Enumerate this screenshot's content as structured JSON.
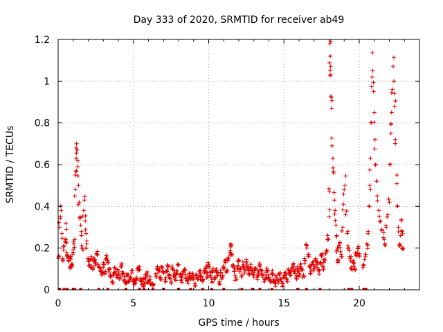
{
  "chart_data": {
    "type": "scatter",
    "title": "Day 333 of 2020, SRMTID for receiver ab49",
    "xlabel": "GPS time / hours",
    "ylabel": "SRMTID / TECUs",
    "xlim": [
      0,
      24
    ],
    "ylim": [
      0,
      1.2
    ],
    "xticks": [
      0,
      5,
      10,
      15,
      20
    ],
    "xtick_labels": [
      "0",
      "5",
      "10",
      "15",
      "20"
    ],
    "yticks": [
      0,
      0.2,
      0.4,
      0.6,
      0.8,
      1,
      1.2
    ],
    "ytick_labels": [
      "0",
      "0.2",
      "0.4",
      "0.6",
      "0.8",
      "1",
      "1.2"
    ],
    "grid": true,
    "marker": "plus",
    "color": "#e00000",
    "series": [
      {
        "name": "SRMTID",
        "points": [
          [
            0.05,
            0.16
          ],
          [
            0.1,
            0.3
          ],
          [
            0.15,
            0.35
          ],
          [
            0.2,
            0.38
          ],
          [
            0.25,
            0.27
          ],
          [
            0.3,
            0.15
          ],
          [
            0.4,
            0.21
          ],
          [
            0.5,
            0.24
          ],
          [
            0.55,
            0.29
          ],
          [
            0.6,
            0.17
          ],
          [
            0.7,
            0.14
          ],
          [
            0.8,
            0.11
          ],
          [
            0.85,
            0.16
          ],
          [
            0.9,
            0.12
          ],
          [
            1.0,
            0.18
          ],
          [
            1.05,
            0.22
          ],
          [
            1.1,
            0.45
          ],
          [
            1.15,
            0.55
          ],
          [
            1.2,
            0.63
          ],
          [
            1.22,
            0.7
          ],
          [
            1.25,
            0.67
          ],
          [
            1.3,
            0.59
          ],
          [
            1.35,
            0.5
          ],
          [
            1.4,
            0.42
          ],
          [
            1.45,
            0.35
          ],
          [
            1.5,
            0.31
          ],
          [
            1.55,
            0.26
          ],
          [
            1.6,
            0.2
          ],
          [
            1.7,
            0.38
          ],
          [
            1.75,
            0.43
          ],
          [
            1.8,
            0.33
          ],
          [
            1.85,
            0.27
          ],
          [
            1.9,
            0.22
          ],
          [
            2.0,
            0.15
          ],
          [
            2.1,
            0.12
          ],
          [
            2.2,
            0.16
          ],
          [
            2.3,
            0.1
          ],
          [
            2.4,
            0.14
          ],
          [
            2.5,
            0.13
          ],
          [
            2.6,
            0.17
          ],
          [
            2.7,
            0.11
          ],
          [
            2.8,
            0.09
          ],
          [
            2.9,
            0.07
          ],
          [
            3.0,
            0.12
          ],
          [
            3.1,
            0.08
          ],
          [
            3.2,
            0.15
          ],
          [
            3.3,
            0.14
          ],
          [
            3.4,
            0.1
          ],
          [
            3.5,
            0.06
          ],
          [
            3.6,
            0.04
          ],
          [
            3.7,
            0.08
          ],
          [
            3.8,
            0.1
          ],
          [
            3.9,
            0.07
          ],
          [
            4.0,
            0.09
          ],
          [
            4.1,
            0.06
          ],
          [
            4.2,
            0.11
          ],
          [
            4.3,
            0.08
          ],
          [
            4.4,
            0.05
          ],
          [
            4.5,
            0.03
          ],
          [
            4.6,
            0.07
          ],
          [
            4.7,
            0.04
          ],
          [
            4.8,
            0.06
          ],
          [
            4.9,
            0.08
          ],
          [
            5.0,
            0.05
          ],
          [
            5.1,
            0.03
          ],
          [
            5.2,
            0.06
          ],
          [
            5.3,
            0.1
          ],
          [
            5.4,
            0.11
          ],
          [
            5.5,
            0.05
          ],
          [
            5.6,
            0.04
          ],
          [
            5.7,
            0.02
          ],
          [
            5.8,
            0.06
          ],
          [
            5.9,
            0.08
          ],
          [
            6.0,
            0.04
          ],
          [
            6.1,
            0.05
          ],
          [
            6.2,
            0.03
          ],
          [
            6.3,
            0.02
          ],
          [
            6.5,
            0.07
          ],
          [
            6.6,
            0.1
          ],
          [
            6.7,
            0.09
          ],
          [
            6.8,
            0.06
          ],
          [
            6.9,
            0.11
          ],
          [
            7.0,
            0.08
          ],
          [
            7.1,
            0.05
          ],
          [
            7.2,
            0.09
          ],
          [
            7.3,
            0.11
          ],
          [
            7.4,
            0.07
          ],
          [
            7.5,
            0.04
          ],
          [
            7.6,
            0.1
          ],
          [
            7.7,
            0.08
          ],
          [
            7.8,
            0.06
          ],
          [
            7.9,
            0.09
          ],
          [
            8.0,
            0.12
          ],
          [
            8.1,
            0.07
          ],
          [
            8.2,
            0.05
          ],
          [
            8.3,
            0.08
          ],
          [
            8.4,
            0.1
          ],
          [
            8.5,
            0.06
          ],
          [
            8.6,
            0.04
          ],
          [
            8.7,
            0.07
          ],
          [
            8.8,
            0.05
          ],
          [
            8.9,
            0.08
          ],
          [
            9.0,
            0.06
          ],
          [
            9.1,
            0.03
          ],
          [
            9.2,
            0.07
          ],
          [
            9.3,
            0.05
          ],
          [
            9.4,
            0.09
          ],
          [
            9.5,
            0.06
          ],
          [
            9.6,
            0.04
          ],
          [
            9.7,
            0.08
          ],
          [
            9.8,
            0.1
          ],
          [
            9.9,
            0.07
          ],
          [
            10.0,
            0.12
          ],
          [
            10.1,
            0.08
          ],
          [
            10.2,
            0.05
          ],
          [
            10.3,
            0.09
          ],
          [
            10.4,
            0.06
          ],
          [
            10.5,
            0.1
          ],
          [
            10.6,
            0.07
          ],
          [
            10.7,
            0.04
          ],
          [
            10.8,
            0.08
          ],
          [
            10.9,
            0.06
          ],
          [
            11.0,
            0.1
          ],
          [
            11.1,
            0.13
          ],
          [
            11.2,
            0.09
          ],
          [
            11.3,
            0.15
          ],
          [
            11.4,
            0.18
          ],
          [
            11.45,
            0.22
          ],
          [
            11.5,
            0.17
          ],
          [
            11.6,
            0.12
          ],
          [
            11.7,
            0.09
          ],
          [
            11.8,
            0.06
          ],
          [
            11.9,
            0.11
          ],
          [
            12.0,
            0.14
          ],
          [
            12.1,
            0.1
          ],
          [
            12.2,
            0.07
          ],
          [
            12.3,
            0.12
          ],
          [
            12.4,
            0.09
          ],
          [
            12.5,
            0.13
          ],
          [
            12.6,
            0.1
          ],
          [
            12.7,
            0.08
          ],
          [
            12.8,
            0.11
          ],
          [
            12.9,
            0.09
          ],
          [
            13.0,
            0.07
          ],
          [
            13.1,
            0.1
          ],
          [
            13.2,
            0.06
          ],
          [
            13.3,
            0.08
          ],
          [
            13.4,
            0.12
          ],
          [
            13.5,
            0.09
          ],
          [
            13.6,
            0.06
          ],
          [
            13.7,
            0.04
          ],
          [
            13.8,
            0.07
          ],
          [
            13.9,
            0.09
          ],
          [
            14.0,
            0.06
          ],
          [
            14.1,
            0.05
          ],
          [
            14.2,
            0.08
          ],
          [
            14.3,
            0.04
          ],
          [
            14.4,
            0.03
          ],
          [
            14.5,
            0.06
          ],
          [
            14.6,
            0.04
          ],
          [
            14.7,
            0.07
          ],
          [
            14.8,
            0.05
          ],
          [
            14.9,
            0.03
          ],
          [
            15.0,
            0.06
          ],
          [
            15.1,
            0.08
          ],
          [
            15.2,
            0.05
          ],
          [
            15.3,
            0.09
          ],
          [
            15.4,
            0.07
          ],
          [
            15.5,
            0.1
          ],
          [
            15.6,
            0.12
          ],
          [
            15.7,
            0.09
          ],
          [
            15.8,
            0.06
          ],
          [
            15.9,
            0.1
          ],
          [
            16.0,
            0.08
          ],
          [
            16.1,
            0.12
          ],
          [
            16.2,
            0.1
          ],
          [
            16.3,
            0.07
          ],
          [
            16.4,
            0.14
          ],
          [
            16.5,
            0.2
          ],
          [
            16.6,
            0.17
          ],
          [
            16.7,
            0.11
          ],
          [
            16.8,
            0.09
          ],
          [
            16.9,
            0.13
          ],
          [
            17.0,
            0.1
          ],
          [
            17.1,
            0.15
          ],
          [
            17.2,
            0.12
          ],
          [
            17.3,
            0.09
          ],
          [
            17.4,
            0.13
          ],
          [
            17.5,
            0.16
          ],
          [
            17.6,
            0.11
          ],
          [
            17.7,
            0.14
          ],
          [
            17.8,
            0.18
          ],
          [
            17.9,
            0.24
          ],
          [
            18.0,
            0.35
          ],
          [
            18.02,
            0.47
          ],
          [
            18.05,
            1.18
          ],
          [
            18.08,
            1.12
          ],
          [
            18.1,
            1.07
          ],
          [
            18.12,
            1.03
          ],
          [
            18.15,
            0.92
          ],
          [
            18.17,
            0.87
          ],
          [
            18.2,
            0.69
          ],
          [
            18.25,
            0.63
          ],
          [
            18.3,
            0.56
          ],
          [
            18.35,
            0.43
          ],
          [
            18.4,
            0.38
          ],
          [
            18.45,
            0.31
          ],
          [
            18.5,
            0.26
          ],
          [
            18.55,
            0.2
          ],
          [
            18.6,
            0.14
          ],
          [
            18.7,
            0.22
          ],
          [
            18.8,
            0.17
          ],
          [
            18.9,
            0.3
          ],
          [
            18.95,
            0.41
          ],
          [
            19.0,
            0.48
          ],
          [
            19.05,
            0.5
          ],
          [
            19.1,
            0.36
          ],
          [
            19.2,
            0.27
          ],
          [
            19.3,
            0.2
          ],
          [
            19.4,
            0.15
          ],
          [
            19.5,
            0.11
          ],
          [
            19.6,
            0.14
          ],
          [
            19.7,
            0.1
          ],
          [
            19.8,
            0.17
          ],
          [
            19.9,
            0.2
          ],
          [
            20.0,
            0.16
          ],
          [
            20.3,
            0.12
          ],
          [
            20.4,
            0.16
          ],
          [
            20.5,
            0.22
          ],
          [
            20.6,
            0.28
          ],
          [
            20.65,
            0.4
          ],
          [
            20.7,
            0.5
          ],
          [
            20.75,
            0.63
          ],
          [
            20.8,
            0.8
          ],
          [
            20.85,
            1.02
          ],
          [
            20.9,
            1.05
          ],
          [
            20.95,
            0.95
          ],
          [
            21.0,
            0.85
          ],
          [
            21.05,
            0.72
          ],
          [
            21.1,
            0.6
          ],
          [
            21.15,
            0.52
          ],
          [
            21.2,
            0.45
          ],
          [
            21.3,
            0.38
          ],
          [
            21.4,
            0.33
          ],
          [
            21.5,
            0.29
          ],
          [
            21.6,
            0.25
          ],
          [
            21.7,
            0.22
          ],
          [
            21.8,
            0.3
          ],
          [
            21.9,
            0.36
          ],
          [
            22.0,
            0.42
          ],
          [
            22.05,
            0.6
          ],
          [
            22.1,
            0.75
          ],
          [
            22.15,
            0.85
          ],
          [
            22.2,
            0.96
          ],
          [
            22.25,
            1.07
          ],
          [
            22.3,
            1.0
          ],
          [
            22.35,
            0.88
          ],
          [
            22.4,
            0.72
          ],
          [
            22.5,
            0.55
          ],
          [
            22.55,
            0.4
          ],
          [
            22.6,
            0.3
          ],
          [
            22.7,
            0.22
          ],
          [
            22.75,
            0.26
          ],
          [
            22.8,
            0.33
          ],
          [
            22.85,
            0.28
          ],
          [
            22.9,
            0.2
          ]
        ]
      }
    ],
    "zero_markers_x": [
      0.1,
      0.4,
      0.6,
      1.0,
      1.1,
      1.5,
      2.7,
      3.3,
      4.5,
      5.4,
      5.7,
      6.3,
      7.0,
      8.0,
      8.8,
      9.6,
      10.2,
      11.0,
      12.2,
      12.9,
      13.4,
      14.2,
      15.9,
      16.5,
      17.4,
      19.3,
      19.5,
      20.3,
      20.45
    ]
  }
}
